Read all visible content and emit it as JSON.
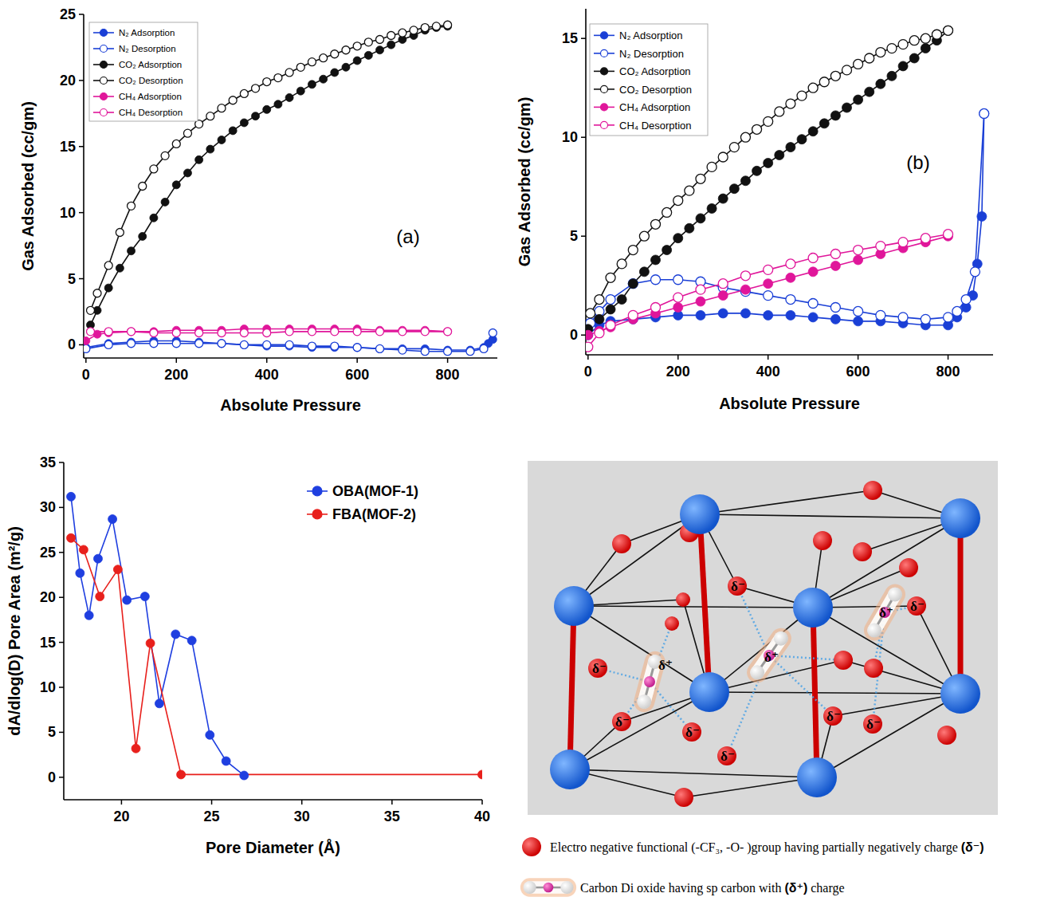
{
  "chart_data": [
    {
      "type": "line",
      "panel_label": "(a)",
      "x_label": "Absolute Pressure",
      "y_label": "Gas Adsorbed (cc/gm)",
      "xlim": [
        -5,
        910
      ],
      "ylim": [
        -1,
        25
      ],
      "xticks": [
        0,
        200,
        400,
        600,
        800
      ],
      "yticks": [
        0,
        5,
        10,
        15,
        20,
        25
      ],
      "legend": "upper left",
      "series": [
        {
          "name": "N₂ Adsorption",
          "color": "#1a3fd6",
          "marker": "circle",
          "x": [
            0,
            50,
            100,
            150,
            200,
            250,
            300,
            350,
            400,
            450,
            500,
            550,
            600,
            650,
            700,
            750,
            800,
            850,
            880,
            890,
            900
          ],
          "values": [
            -0.2,
            0.1,
            0.2,
            0.3,
            0.3,
            0.2,
            0.1,
            0.0,
            -0.1,
            -0.1,
            -0.2,
            -0.2,
            -0.2,
            -0.3,
            -0.3,
            -0.3,
            -0.4,
            -0.4,
            -0.2,
            0.1,
            0.4
          ]
        },
        {
          "name": "N₂ Desorption",
          "color": "#1a3fd6",
          "marker": "circle-open",
          "x": [
            0,
            50,
            100,
            150,
            200,
            250,
            300,
            350,
            400,
            450,
            500,
            550,
            600,
            650,
            700,
            750,
            800,
            850,
            880,
            900
          ],
          "values": [
            -0.3,
            0.0,
            0.1,
            0.1,
            0.1,
            0.1,
            0.1,
            0.0,
            0.0,
            0.0,
            -0.1,
            -0.1,
            -0.2,
            -0.3,
            -0.4,
            -0.5,
            -0.5,
            -0.5,
            -0.3,
            0.9
          ]
        },
        {
          "name": "CO₂ Adsorption",
          "color": "#111111",
          "marker": "circle",
          "x": [
            10,
            25,
            50,
            75,
            100,
            125,
            150,
            175,
            200,
            225,
            250,
            275,
            300,
            325,
            350,
            375,
            400,
            425,
            450,
            475,
            500,
            525,
            550,
            575,
            600,
            625,
            650,
            675,
            700,
            725,
            750,
            775,
            800
          ],
          "values": [
            1.5,
            2.6,
            4.3,
            5.8,
            7.1,
            8.2,
            9.6,
            10.8,
            12.1,
            13.0,
            14.0,
            14.8,
            15.5,
            16.2,
            16.8,
            17.3,
            17.8,
            18.2,
            18.7,
            19.2,
            19.7,
            20.1,
            20.6,
            21.0,
            21.5,
            21.9,
            22.3,
            22.7,
            23.1,
            23.4,
            23.8,
            24.0,
            24.1
          ]
        },
        {
          "name": "CO₂ Desorption",
          "color": "#111111",
          "marker": "circle-open",
          "x": [
            10,
            25,
            50,
            75,
            100,
            125,
            150,
            175,
            200,
            225,
            250,
            275,
            300,
            325,
            350,
            375,
            400,
            425,
            450,
            475,
            500,
            525,
            550,
            575,
            600,
            625,
            650,
            675,
            700,
            725,
            750,
            775,
            800
          ],
          "values": [
            2.6,
            3.9,
            6.0,
            8.5,
            10.5,
            12.0,
            13.3,
            14.3,
            15.2,
            16.0,
            16.7,
            17.3,
            17.9,
            18.5,
            19.0,
            19.4,
            19.9,
            20.2,
            20.6,
            21.0,
            21.4,
            21.7,
            22.0,
            22.3,
            22.6,
            22.9,
            23.1,
            23.4,
            23.6,
            23.8,
            24.0,
            24.1,
            24.2
          ]
        },
        {
          "name": "CH₄ Adsorption",
          "color": "#e0169a",
          "marker": "circle",
          "x": [
            0,
            25,
            50,
            100,
            150,
            200,
            250,
            300,
            350,
            400,
            450,
            500,
            550,
            600,
            650,
            700,
            750,
            800
          ],
          "values": [
            0.3,
            0.8,
            0.9,
            1.0,
            1.0,
            1.1,
            1.1,
            1.1,
            1.2,
            1.2,
            1.2,
            1.2,
            1.2,
            1.2,
            1.1,
            1.1,
            1.1,
            1.0
          ]
        },
        {
          "name": "CH₄ Desorption",
          "color": "#e0169a",
          "marker": "circle-open",
          "x": [
            10,
            50,
            100,
            150,
            200,
            250,
            300,
            350,
            400,
            450,
            500,
            550,
            600,
            650,
            700,
            750,
            800
          ],
          "values": [
            1.0,
            1.0,
            1.0,
            0.9,
            0.9,
            0.9,
            0.9,
            0.9,
            0.9,
            1.0,
            1.0,
            1.0,
            1.0,
            1.0,
            1.0,
            1.0,
            1.0
          ]
        }
      ]
    },
    {
      "type": "line",
      "panel_label": "(b)",
      "x_label": "Absolute Pressure",
      "y_label": "Gas Adsorbed (cc/gm)",
      "xlim": [
        -5,
        900
      ],
      "ylim": [
        -1,
        16.5
      ],
      "xticks": [
        0,
        200,
        400,
        600,
        800
      ],
      "yticks": [
        0,
        5,
        10,
        15
      ],
      "legend": "upper left",
      "series": [
        {
          "name": "N₂ Adsorption",
          "color": "#1a3fd6",
          "marker": "circle",
          "x": [
            0,
            25,
            50,
            100,
            150,
            200,
            250,
            300,
            350,
            400,
            450,
            500,
            550,
            600,
            650,
            700,
            750,
            800,
            820,
            840,
            855,
            865,
            875,
            880
          ],
          "values": [
            0.0,
            0.5,
            0.7,
            0.8,
            0.9,
            1.0,
            1.0,
            1.1,
            1.1,
            1.0,
            1.0,
            0.9,
            0.8,
            0.7,
            0.7,
            0.6,
            0.5,
            0.5,
            0.9,
            1.4,
            2.0,
            3.6,
            6.0,
            11.2
          ]
        },
        {
          "name": "N₂ Desorption",
          "color": "#1a3fd6",
          "marker": "circle-open",
          "x": [
            5,
            25,
            50,
            100,
            150,
            200,
            250,
            300,
            350,
            400,
            450,
            500,
            550,
            600,
            650,
            700,
            750,
            800,
            820,
            840,
            860,
            880
          ],
          "values": [
            0.6,
            1.2,
            1.8,
            2.6,
            2.8,
            2.8,
            2.7,
            2.4,
            2.2,
            2.0,
            1.8,
            1.6,
            1.4,
            1.2,
            1.0,
            0.9,
            0.8,
            0.9,
            1.2,
            1.8,
            3.2,
            11.2
          ]
        },
        {
          "name": "CO₂ Adsorption",
          "color": "#111111",
          "marker": "circle",
          "x": [
            0,
            25,
            50,
            75,
            100,
            125,
            150,
            175,
            200,
            225,
            250,
            275,
            300,
            325,
            350,
            375,
            400,
            425,
            450,
            475,
            500,
            525,
            550,
            575,
            600,
            625,
            650,
            675,
            700,
            725,
            750,
            775,
            800
          ],
          "values": [
            0.3,
            0.8,
            1.3,
            1.8,
            2.6,
            3.2,
            3.8,
            4.3,
            4.9,
            5.4,
            5.9,
            6.4,
            6.9,
            7.4,
            7.8,
            8.3,
            8.7,
            9.1,
            9.5,
            9.9,
            10.3,
            10.7,
            11.1,
            11.5,
            11.9,
            12.3,
            12.7,
            13.1,
            13.6,
            14.0,
            14.5,
            14.9,
            15.4
          ]
        },
        {
          "name": "CO₂ Desorption",
          "color": "#111111",
          "marker": "circle-open",
          "x": [
            5,
            25,
            50,
            75,
            100,
            125,
            150,
            175,
            200,
            225,
            250,
            275,
            300,
            325,
            350,
            375,
            400,
            425,
            450,
            475,
            500,
            525,
            550,
            575,
            600,
            625,
            650,
            675,
            700,
            725,
            750,
            775,
            800
          ],
          "values": [
            1.1,
            1.8,
            2.9,
            3.6,
            4.3,
            5.0,
            5.6,
            6.2,
            6.8,
            7.3,
            7.9,
            8.5,
            9.0,
            9.5,
            10.0,
            10.4,
            10.8,
            11.3,
            11.7,
            12.1,
            12.5,
            12.8,
            13.1,
            13.4,
            13.7,
            14.0,
            14.3,
            14.5,
            14.7,
            14.9,
            15.0,
            15.2,
            15.4
          ]
        },
        {
          "name": "CH₄ Adsorption",
          "color": "#e0169a",
          "marker": "circle",
          "x": [
            0,
            25,
            50,
            100,
            150,
            200,
            250,
            300,
            350,
            400,
            450,
            500,
            550,
            600,
            650,
            700,
            750,
            800
          ],
          "values": [
            0.0,
            0.2,
            0.4,
            0.8,
            1.1,
            1.4,
            1.7,
            2.0,
            2.3,
            2.6,
            2.9,
            3.2,
            3.5,
            3.8,
            4.1,
            4.4,
            4.7,
            5.0
          ]
        },
        {
          "name": "CH₄ Desorption",
          "color": "#e0169a",
          "marker": "circle-open",
          "x": [
            0,
            25,
            50,
            100,
            150,
            200,
            250,
            300,
            350,
            400,
            450,
            500,
            550,
            600,
            650,
            700,
            750,
            800
          ],
          "values": [
            -0.6,
            0.1,
            0.5,
            1.0,
            1.4,
            1.9,
            2.3,
            2.6,
            3.0,
            3.3,
            3.6,
            3.9,
            4.1,
            4.3,
            4.5,
            4.7,
            4.9,
            5.1
          ]
        }
      ]
    },
    {
      "type": "line",
      "x_label": "Pore Diameter (Å)",
      "y_label": "dA/dlog(D) Pore Area (m²/g)",
      "xlim": [
        16.8,
        40
      ],
      "ylim": [
        -2.5,
        35
      ],
      "xticks": [
        20,
        25,
        30,
        35,
        40
      ],
      "yticks": [
        0,
        5,
        10,
        15,
        20,
        25,
        30,
        35
      ],
      "legend": "upper right",
      "series": [
        {
          "name": "OBA(MOF-1)",
          "color": "#1f3fe0",
          "marker": "circle",
          "x": [
            17.2,
            17.7,
            18.2,
            18.7,
            19.5,
            20.3,
            21.3,
            22.1,
            23.0,
            23.9,
            24.9,
            25.8,
            26.8
          ],
          "values": [
            31.2,
            22.7,
            18.0,
            24.3,
            28.7,
            19.7,
            20.1,
            8.2,
            15.9,
            15.2,
            4.7,
            1.8,
            0.2
          ]
        },
        {
          "name": "FBA(MOF-2)",
          "color": "#e8201c",
          "marker": "circle",
          "x": [
            17.2,
            17.9,
            18.8,
            19.8,
            20.8,
            21.6,
            23.3,
            40.0
          ],
          "values": [
            26.6,
            25.3,
            20.1,
            23.1,
            3.2,
            14.9,
            0.3,
            0.3
          ]
        }
      ]
    }
  ],
  "diagram": {
    "negative_charge": "δ⁻",
    "positive_charge": "δ⁺",
    "legend": [
      {
        "text": "Electro negative functional  (-CF₃, -O- )group having partially negatively charge",
        "symbol": "(δ⁻)"
      },
      {
        "text": "Carbon Di oxide having sp carbon with",
        "symbol": "(δ⁺)",
        "tail": "charge"
      }
    ]
  }
}
